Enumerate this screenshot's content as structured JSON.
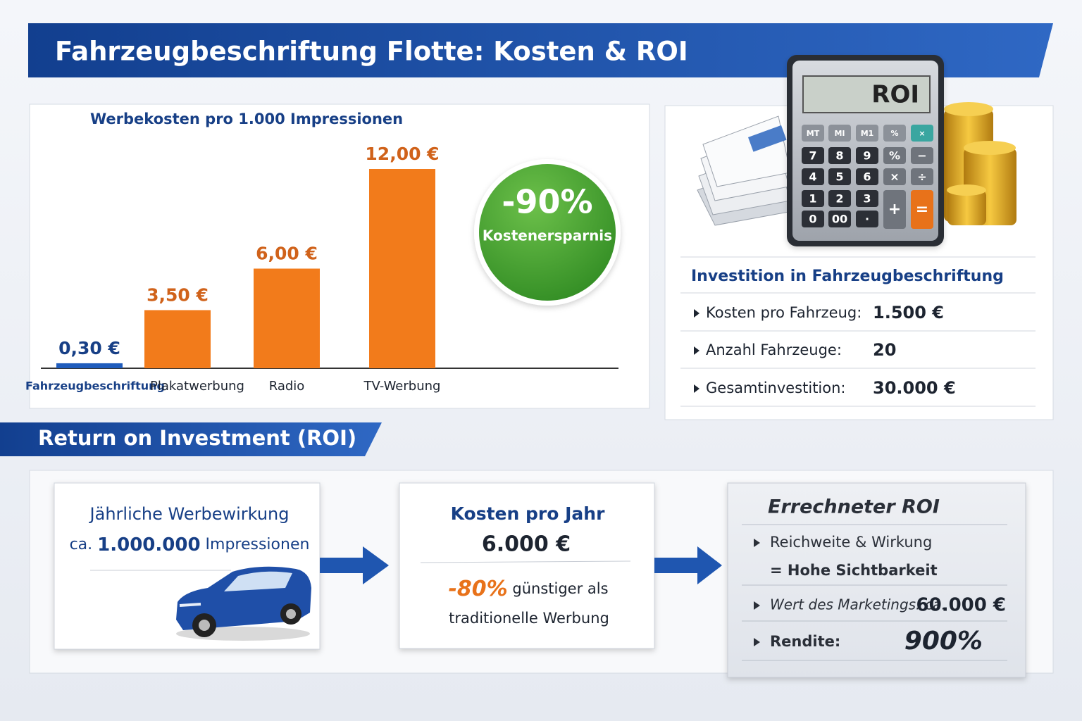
{
  "header": {
    "title": "Fahrzeugbeschriftung Flotte: Kosten & ROI"
  },
  "chart_data": {
    "type": "bar",
    "title": "Werbekosten pro 1.000 Impressionen",
    "categories": [
      "Fahrzeugbeschriftung",
      "Plakatwerbung",
      "Radio",
      "TV-Werbung"
    ],
    "values": [
      0.3,
      3.5,
      6,
      12
    ],
    "value_labels": [
      "0,30 €",
      "3,50 €",
      "6,00 €",
      "12,00 €"
    ],
    "colors": [
      "#1f5cbc",
      "#f27b1b",
      "#f27b1b",
      "#f27b1b"
    ],
    "ylim": [
      0,
      12
    ]
  },
  "badge": {
    "value": "-90%",
    "label": "Kostenersparnis"
  },
  "calculator": {
    "display": "ROI",
    "keys": [
      "MT",
      "MI",
      "M1",
      "%",
      "×",
      "7",
      "8",
      "9",
      "%",
      "−",
      "4",
      "5",
      "6",
      "×",
      "÷",
      "1",
      "2",
      "3",
      "+",
      "=",
      "0",
      "00",
      "·"
    ]
  },
  "investment": {
    "title": "Investition in Fahrzeugbeschriftung",
    "rows": [
      {
        "label": "Kosten pro Fahrzeug:",
        "value": "1.500 €"
      },
      {
        "label": "Anzahl Fahrzeuge:",
        "value": "20"
      },
      {
        "label": "Gesamtinvestition:",
        "value": "30.000 €"
      }
    ]
  },
  "roi": {
    "title": "Return on Investment (ROI)",
    "impact": {
      "title": "Jährliche Werbewirkung",
      "prefix": "ca.",
      "value": "1.000.000",
      "unit": "Impressionen"
    },
    "costs": {
      "title": "Kosten pro Jahr",
      "value": "6.000 €",
      "saving": "-80%",
      "saving_text": "günstiger als",
      "saving_text2": "traditionelle Werbung"
    },
    "result": {
      "title": "Errechneter ROI",
      "reach": "Reichweite & Wirkung",
      "reach_result": "= Hohe Sichtbarkeit",
      "marketing_label": "Wert des Marketings: ca.",
      "marketing_value": "60.000 €",
      "return_label": "Rendite:",
      "return_value": "900%"
    }
  }
}
